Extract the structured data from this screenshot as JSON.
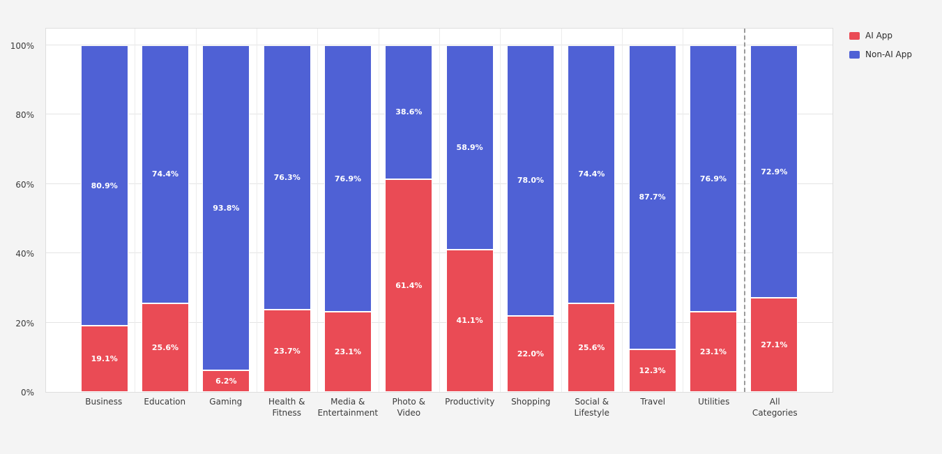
{
  "chart_data": {
    "type": "bar",
    "stacked": true,
    "title": "",
    "xlabel": "",
    "ylabel": "",
    "categories": [
      "Business",
      "Education",
      "Gaming",
      "Health &\nFitness",
      "Media &\nEntertainment",
      "Photo &\nVideo",
      "Productivity",
      "Shopping",
      "Social &\nLifestyle",
      "Travel",
      "Utilities",
      "All\nCategories"
    ],
    "series": [
      {
        "name": "AI App",
        "color": "#ea4b55",
        "values": [
          19.1,
          25.6,
          6.2,
          23.7,
          23.1,
          61.4,
          41.1,
          22.0,
          25.6,
          12.3,
          23.1,
          27.1
        ]
      },
      {
        "name": "Non-AI App",
        "color": "#4f61d5",
        "values": [
          80.9,
          74.4,
          93.8,
          76.3,
          76.9,
          38.6,
          58.9,
          78.0,
          74.4,
          87.7,
          76.9,
          72.9
        ]
      }
    ],
    "yticks": [
      0,
      20,
      40,
      60,
      80,
      100
    ],
    "ytick_suffix": "%",
    "ylim": [
      0,
      100
    ],
    "grid": true,
    "legend_position": "top-right",
    "separator_before_category": "All\nCategories",
    "label_format": "one-decimal-percent"
  }
}
